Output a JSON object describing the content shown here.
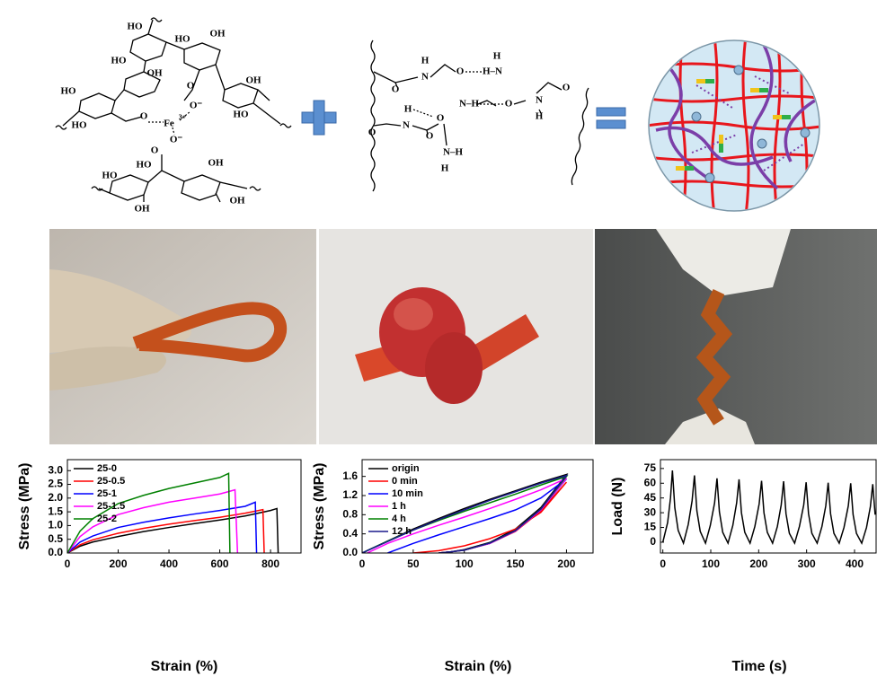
{
  "scheme": {
    "labels": [
      "HO",
      "HO",
      "OH",
      "HO",
      "OH",
      "HO",
      "O",
      "O⁻",
      "OH",
      "HO",
      "HO",
      "O",
      "Fe",
      "3+",
      "O⁻",
      "O",
      "HO",
      "OH",
      "OH",
      "HO",
      "OH",
      "H",
      "N",
      "O",
      "H–N",
      "H",
      "O",
      "N–H",
      "O",
      "N",
      "H",
      "O",
      "H",
      "N",
      "O",
      "O",
      "O",
      "N–H",
      "H"
    ]
  },
  "chart_data": [
    {
      "type": "line",
      "x_label": "Strain (%)",
      "y_label": "Stress (MPa)",
      "xlim": [
        0,
        920
      ],
      "ylim": [
        0,
        3.4
      ],
      "xticks": [
        0,
        200,
        400,
        600,
        800
      ],
      "yticks": [
        {
          "value": 0,
          "label": "0.0"
        },
        0.5,
        {
          "value": 1,
          "label": "1.0"
        },
        1.5,
        {
          "value": 2,
          "label": "2.0"
        },
        2.5,
        {
          "value": 3,
          "label": "3.0"
        }
      ],
      "legend": "upper left",
      "series": [
        {
          "name": "25-0",
          "color": "#000000",
          "x": [
            0,
            50,
            100,
            200,
            300,
            400,
            500,
            600,
            700,
            800,
            825,
            830
          ],
          "values": [
            0,
            0.25,
            0.4,
            0.6,
            0.78,
            0.93,
            1.07,
            1.2,
            1.35,
            1.55,
            1.62,
            0
          ]
        },
        {
          "name": "25-0.5",
          "color": "#ff0000",
          "x": [
            0,
            50,
            100,
            200,
            300,
            400,
            500,
            600,
            700,
            770,
            775
          ],
          "values": [
            0,
            0.3,
            0.48,
            0.72,
            0.9,
            1.05,
            1.18,
            1.3,
            1.45,
            1.58,
            0
          ]
        },
        {
          "name": "25-1",
          "color": "#0000ff",
          "x": [
            0,
            50,
            100,
            200,
            300,
            400,
            500,
            600,
            700,
            740,
            745
          ],
          "values": [
            0,
            0.4,
            0.62,
            0.93,
            1.12,
            1.28,
            1.42,
            1.55,
            1.7,
            1.85,
            0
          ]
        },
        {
          "name": "25-1.5",
          "color": "#ff00ff",
          "x": [
            0,
            50,
            100,
            200,
            300,
            400,
            500,
            600,
            660,
            670
          ],
          "values": [
            0,
            0.6,
            0.95,
            1.4,
            1.65,
            1.85,
            2.0,
            2.15,
            2.3,
            0
          ]
        },
        {
          "name": "25-2",
          "color": "#008000",
          "x": [
            0,
            50,
            100,
            200,
            300,
            400,
            500,
            600,
            635,
            640
          ],
          "values": [
            0,
            0.8,
            1.25,
            1.8,
            2.1,
            2.35,
            2.55,
            2.75,
            2.9,
            0
          ]
        }
      ]
    },
    {
      "type": "line",
      "x_label": "Strain (%)",
      "y_label": "Stress (MPa)",
      "xlim": [
        0,
        226
      ],
      "ylim": [
        0,
        1.95
      ],
      "xticks": [
        0,
        50,
        100,
        150,
        200
      ],
      "yticks": [
        {
          "value": 0,
          "label": "0.0"
        },
        0.4,
        0.8,
        1.2,
        1.6
      ],
      "legend": "upper left",
      "series": [
        {
          "name": "origin",
          "color": "#000000",
          "x": [
            0,
            25,
            50,
            75,
            100,
            125,
            150,
            175,
            200,
            175,
            150,
            125,
            100,
            85,
            75
          ],
          "values": [
            0,
            0.25,
            0.5,
            0.72,
            0.93,
            1.12,
            1.3,
            1.48,
            1.64,
            0.95,
            0.5,
            0.22,
            0.07,
            0.02,
            0
          ]
        },
        {
          "name": "0 min",
          "color": "#ff0000",
          "x": [
            50,
            75,
            100,
            125,
            150,
            175,
            200,
            175,
            150,
            125,
            100,
            85,
            75
          ],
          "values": [
            0,
            0.05,
            0.15,
            0.3,
            0.5,
            0.85,
            1.48,
            0.88,
            0.45,
            0.2,
            0.06,
            0.02,
            0
          ]
        },
        {
          "name": "10 min",
          "color": "#0000ff",
          "x": [
            25,
            50,
            75,
            100,
            125,
            150,
            175,
            200,
            175,
            150,
            125,
            100,
            85,
            75
          ],
          "values": [
            0,
            0.2,
            0.38,
            0.55,
            0.72,
            0.9,
            1.15,
            1.55,
            0.9,
            0.46,
            0.2,
            0.06,
            0.02,
            0
          ]
        },
        {
          "name": "1 h",
          "color": "#ff00ff",
          "x": [
            5,
            25,
            50,
            75,
            100,
            125,
            150,
            175,
            200,
            175,
            150,
            125,
            100,
            85,
            75
          ],
          "values": [
            0,
            0.2,
            0.4,
            0.58,
            0.75,
            0.93,
            1.12,
            1.32,
            1.56,
            0.9,
            0.46,
            0.2,
            0.06,
            0.02,
            0
          ]
        },
        {
          "name": "4 h",
          "color": "#008000",
          "x": [
            0,
            25,
            50,
            75,
            100,
            125,
            150,
            175,
            200,
            175,
            150,
            125,
            100,
            85,
            75
          ],
          "values": [
            0,
            0.25,
            0.48,
            0.68,
            0.87,
            1.05,
            1.23,
            1.42,
            1.6,
            0.92,
            0.47,
            0.21,
            0.06,
            0.02,
            0
          ]
        },
        {
          "name": "12 h",
          "color": "#1a1a8c",
          "x": [
            0,
            25,
            50,
            75,
            100,
            125,
            150,
            175,
            200,
            175,
            150,
            125,
            100,
            85,
            75
          ],
          "values": [
            0,
            0.24,
            0.48,
            0.7,
            0.9,
            1.1,
            1.28,
            1.46,
            1.62,
            0.92,
            0.47,
            0.21,
            0.06,
            0.02,
            0
          ]
        }
      ]
    },
    {
      "type": "line",
      "x_label": "Time (s)",
      "y_label": "Load (N)",
      "xlim": [
        -5,
        445
      ],
      "ylim": [
        -11,
        84
      ],
      "xticks": [
        0,
        100,
        200,
        300,
        400
      ],
      "yticks": [
        0,
        15,
        30,
        45,
        60,
        75
      ],
      "color": "#000000",
      "x": [
        0,
        10,
        16,
        20,
        25,
        32,
        43,
        53,
        61,
        66,
        71,
        78,
        89,
        99,
        108,
        113,
        118,
        125,
        136,
        146,
        154,
        159,
        164,
        171,
        182,
        192,
        201,
        206,
        211,
        218,
        229,
        239,
        247,
        252,
        257,
        264,
        275,
        285,
        294,
        299,
        304,
        311,
        322,
        332,
        340,
        345,
        350,
        357,
        368,
        378,
        387,
        392,
        397,
        404,
        415,
        425,
        433,
        438,
        443
      ],
      "values": [
        0,
        20,
        45,
        73,
        35,
        12,
        -1,
        18,
        42,
        68,
        32,
        11,
        -1,
        17,
        40,
        65,
        31,
        10,
        -1,
        17,
        40,
        64,
        30,
        10,
        -1,
        16,
        39,
        62.5,
        30,
        10,
        -1,
        16,
        38,
        62,
        29,
        9,
        -1,
        16,
        38,
        61,
        29,
        9,
        -1,
        16,
        37,
        60.5,
        29,
        9,
        -1,
        15,
        37,
        60,
        28,
        9,
        -1,
        15,
        36,
        59,
        28
      ]
    }
  ]
}
